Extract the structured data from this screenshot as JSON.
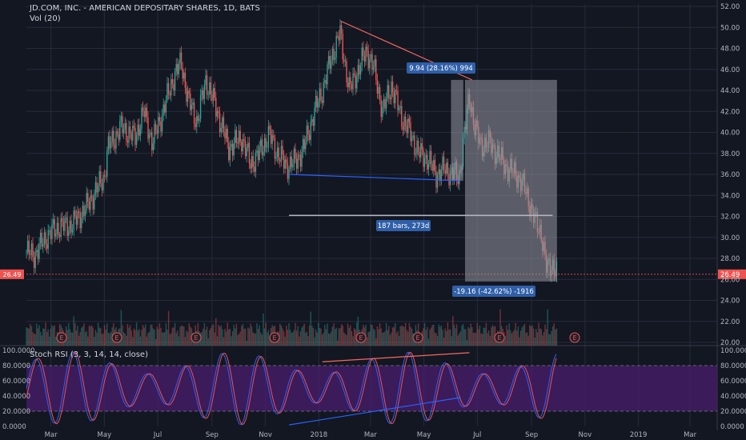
{
  "chart_data": {
    "type": "candlestick",
    "title": "JD.COM, INC. - AMERICAN DEPOSITARY SHARES, 1D, BATS",
    "volume_label": "Vol (20)",
    "last_price": "26.49",
    "price_axis": {
      "min": 20,
      "max": 52,
      "ticks": [
        "52.00",
        "50.00",
        "48.00",
        "46.00",
        "44.00",
        "42.00",
        "40.00",
        "38.00",
        "36.00",
        "34.00",
        "32.00",
        "30.00",
        "28.00",
        "26.00",
        "24.00",
        "22.00",
        "20.00"
      ]
    },
    "time_axis": [
      "Mar",
      "May",
      "Jul",
      "Sep",
      "Nov",
      "2018",
      "Mar",
      "May",
      "Jul",
      "Sep",
      "Nov",
      "2019",
      "Mar"
    ],
    "price_path": [
      [
        "2017-02-01",
        28.6
      ],
      [
        "2017-02-10",
        28.3
      ],
      [
        "2017-02-25",
        30.2
      ],
      [
        "2017-03-10",
        31.0
      ],
      [
        "2017-03-25",
        31.2
      ],
      [
        "2017-04-10",
        32.8
      ],
      [
        "2017-04-25",
        35.0
      ],
      [
        "2017-05-01",
        35.8
      ],
      [
        "2017-05-05",
        38.5
      ],
      [
        "2017-05-20",
        40.5
      ],
      [
        "2017-06-05",
        39.5
      ],
      [
        "2017-06-15",
        42.0
      ],
      [
        "2017-06-25",
        39.0
      ],
      [
        "2017-07-05",
        41.5
      ],
      [
        "2017-07-20",
        45.5
      ],
      [
        "2017-07-28",
        46.6
      ],
      [
        "2017-08-05",
        43.0
      ],
      [
        "2017-08-15",
        41.0
      ],
      [
        "2017-08-25",
        45.0
      ],
      [
        "2017-09-05",
        42.5
      ],
      [
        "2017-09-20",
        38.5
      ],
      [
        "2017-10-05",
        39.5
      ],
      [
        "2017-10-15",
        37.0
      ],
      [
        "2017-10-25",
        38.0
      ],
      [
        "2017-11-05",
        39.8
      ],
      [
        "2017-11-15",
        38.0
      ],
      [
        "2017-11-25",
        36.8
      ],
      [
        "2017-12-05",
        37.2
      ],
      [
        "2017-12-15",
        38.5
      ],
      [
        "2017-12-25",
        41.5
      ],
      [
        "2018-01-05",
        44.0
      ],
      [
        "2018-01-15",
        47.0
      ],
      [
        "2018-01-25",
        49.5
      ],
      [
        "2018-02-05",
        44.0
      ],
      [
        "2018-02-15",
        46.0
      ],
      [
        "2018-02-25",
        47.8
      ],
      [
        "2018-03-05",
        46.0
      ],
      [
        "2018-03-15",
        42.0
      ],
      [
        "2018-03-25",
        44.5
      ],
      [
        "2018-04-05",
        41.5
      ],
      [
        "2018-04-15",
        40.0
      ],
      [
        "2018-04-25",
        38.0
      ],
      [
        "2018-05-05",
        37.5
      ],
      [
        "2018-05-15",
        36.0
      ],
      [
        "2018-05-25",
        36.5
      ],
      [
        "2018-06-05",
        36.0
      ],
      [
        "2018-06-10",
        35.6
      ],
      [
        "2018-06-15",
        39.0
      ],
      [
        "2018-06-22",
        43.5
      ],
      [
        "2018-06-28",
        40.5
      ],
      [
        "2018-07-05",
        38.8
      ],
      [
        "2018-07-15",
        39.0
      ],
      [
        "2018-07-25",
        37.8
      ],
      [
        "2018-08-05",
        36.5
      ],
      [
        "2018-08-15",
        36.0
      ],
      [
        "2018-08-25",
        34.5
      ],
      [
        "2018-09-05",
        31.5
      ],
      [
        "2018-09-12",
        30.5
      ],
      [
        "2018-09-18",
        27.0
      ],
      [
        "2018-09-25",
        27.5
      ],
      [
        "2018-09-30",
        26.5
      ]
    ],
    "annotations": {
      "upper_trendline": {
        "from": [
          "2018-01-26",
          50.6
        ],
        "to": [
          "2018-06-25",
          45.0
        ],
        "label": "9.94 (28.16%) 994"
      },
      "lower_trendline": {
        "from": [
          "2017-11-28",
          36.0
        ],
        "to": [
          "2018-06-12",
          35.4
        ]
      },
      "horizontal_line": {
        "from": [
          "2017-11-28",
          32.1
        ],
        "to": [
          "2018-09-25",
          32.1
        ]
      },
      "price_range_upper": {
        "from": "2018-06-01",
        "to": "2018-06-15",
        "top": 45.0,
        "bottom": 35.4
      },
      "price_range_lower": {
        "from": "2018-06-17",
        "to": "2018-09-30",
        "top": 45.0,
        "bottom": 25.8,
        "label": "-19.16 (-42.62%) -1916"
      },
      "bars_label": "187 bars, 273d"
    },
    "earnings_markers": [
      "E",
      "E",
      "E",
      "E",
      "E",
      "E",
      "E",
      "E",
      "E",
      "E"
    ],
    "indicator": {
      "label": "Stoch RSI (3, 3, 14, 14, close)",
      "ticks": [
        "100.0000",
        "80.0000",
        "60.0000",
        "40.0000",
        "20.0000",
        "0.0000"
      ],
      "band": [
        20,
        80
      ]
    },
    "colors": {
      "up": "#26a69a",
      "down": "#ef5350",
      "bg": "#131722",
      "k_line": "#2962ff",
      "d_line": "#ef5350",
      "band": "#4a1e6e"
    }
  }
}
